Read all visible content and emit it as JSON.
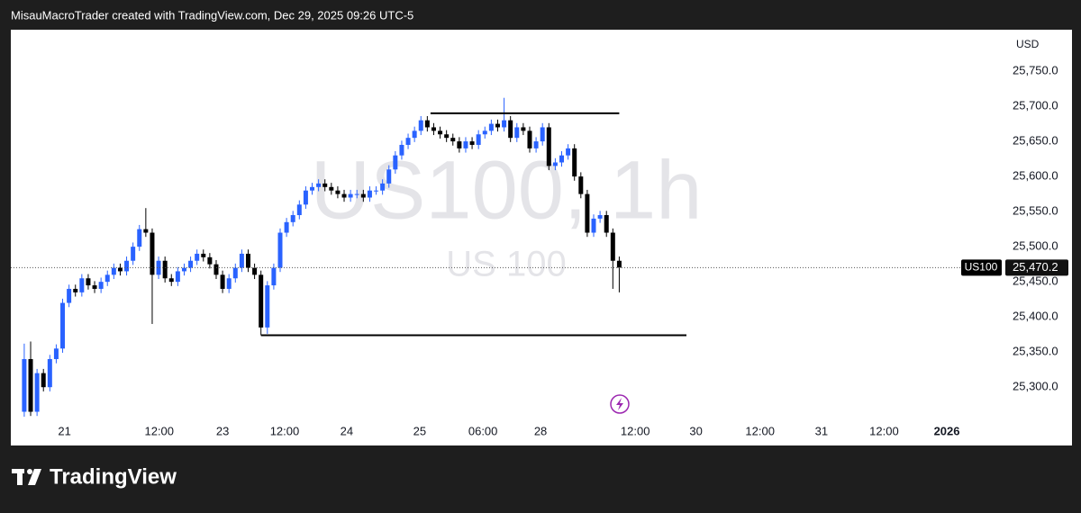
{
  "header": "MisauMacroTrader created with TradingView.com, Dec 29, 2025 09:26 UTC-5",
  "footer": "TradingView",
  "chart_data": {
    "type": "candlestick",
    "watermark": "US100, 1h",
    "watermark_sub": "US 100",
    "currency": "USD",
    "symbol": "US100",
    "open": [
      25265,
      25340,
      25265,
      25320,
      25300,
      25340,
      25355,
      25420,
      25440,
      25435,
      25455,
      25445,
      25440,
      25450,
      25460,
      25470,
      25465,
      25480,
      25500,
      25525,
      25520,
      25460,
      25480,
      25455,
      25450,
      25465,
      25470,
      25480,
      25490,
      25485,
      25475,
      25460,
      25440,
      25455,
      25470,
      25490,
      25470,
      25460,
      25385,
      25445,
      25470,
      25520,
      25535,
      25545,
      25560,
      25580,
      25585,
      25590,
      25585,
      25580,
      25575,
      25570,
      25575,
      25575,
      25570,
      25580,
      25580,
      25590,
      25610,
      25630,
      25645,
      25655,
      25665,
      25680,
      25670,
      25665,
      25660,
      25655,
      25650,
      25640,
      25650,
      25645,
      25660,
      25665,
      25675,
      25670,
      25680,
      25655,
      25670,
      25665,
      25640,
      25650,
      25670,
      25615,
      25620,
      25630,
      25640,
      25600,
      25575,
      25520,
      25540,
      25545,
      25520,
      25480
    ],
    "high": [
      25362,
      25365,
      25326,
      25326,
      25346,
      25361,
      25426,
      25446,
      25446,
      25461,
      25461,
      25451,
      25456,
      25466,
      25476,
      25476,
      25486,
      25506,
      25531,
      25555,
      25526,
      25486,
      25486,
      25461,
      25471,
      25476,
      25486,
      25496,
      25496,
      25491,
      25481,
      25466,
      25461,
      25476,
      25496,
      25496,
      25476,
      25466,
      25451,
      25476,
      25526,
      25541,
      25551,
      25566,
      25586,
      25591,
      25596,
      25596,
      25591,
      25586,
      25581,
      25581,
      25581,
      25581,
      25586,
      25586,
      25596,
      25616,
      25636,
      25651,
      25661,
      25671,
      25686,
      25686,
      25676,
      25671,
      25666,
      25661,
      25656,
      25656,
      25656,
      25666,
      25671,
      25681,
      25681,
      25712,
      25686,
      25676,
      25676,
      25671,
      25656,
      25676,
      25676,
      25626,
      25636,
      25646,
      25646,
      25606,
      25581,
      25546,
      25551,
      25551,
      25526,
      25486
    ],
    "low": [
      25258,
      25259,
      25259,
      25294,
      25294,
      25334,
      25349,
      25414,
      25429,
      25429,
      25439,
      25434,
      25434,
      25444,
      25454,
      25459,
      25459,
      25474,
      25494,
      25514,
      25390,
      25454,
      25449,
      25444,
      25444,
      25459,
      25464,
      25474,
      25479,
      25469,
      25454,
      25434,
      25434,
      25449,
      25464,
      25464,
      25454,
      25374,
      25376,
      25439,
      25464,
      25514,
      25529,
      25539,
      25554,
      25574,
      25579,
      25579,
      25574,
      25569,
      25564,
      25564,
      25569,
      25564,
      25564,
      25574,
      25574,
      25584,
      25604,
      25624,
      25639,
      25649,
      25659,
      25664,
      25659,
      25654,
      25649,
      25644,
      25634,
      25634,
      25639,
      25639,
      25654,
      25659,
      25664,
      25664,
      25649,
      25649,
      25659,
      25634,
      25634,
      25644,
      25609,
      25609,
      25614,
      25624,
      25594,
      25569,
      25514,
      25514,
      25534,
      25514,
      25440,
      25435
    ],
    "close": [
      25340,
      25265,
      25320,
      25300,
      25340,
      25355,
      25420,
      25440,
      25435,
      25455,
      25445,
      25440,
      25450,
      25460,
      25470,
      25465,
      25480,
      25500,
      25525,
      25520,
      25460,
      25480,
      25455,
      25450,
      25465,
      25470,
      25480,
      25490,
      25485,
      25475,
      25460,
      25440,
      25455,
      25470,
      25490,
      25470,
      25460,
      25385,
      25445,
      25470,
      25520,
      25535,
      25545,
      25560,
      25580,
      25585,
      25590,
      25585,
      25580,
      25575,
      25570,
      25575,
      25575,
      25570,
      25580,
      25580,
      25590,
      25610,
      25630,
      25645,
      25655,
      25665,
      25680,
      25670,
      25665,
      25660,
      25655,
      25650,
      25640,
      25650,
      25645,
      25660,
      25665,
      25675,
      25670,
      25680,
      25655,
      25670,
      25665,
      25640,
      25650,
      25670,
      25615,
      25620,
      25630,
      25640,
      25600,
      25575,
      25520,
      25540,
      25545,
      25520,
      25480,
      25470.2
    ],
    "up_color": "#2962ff",
    "down_color": "#000000",
    "ylim": [
      25249,
      25809
    ],
    "yticks": [
      {
        "value": 25300,
        "label": "25,300.0"
      },
      {
        "value": 25350,
        "label": "25,350.0"
      },
      {
        "value": 25400,
        "label": "25,400.0"
      },
      {
        "value": 25450,
        "label": "25,450.0"
      },
      {
        "value": 25500,
        "label": "25,500.0"
      },
      {
        "value": 25550,
        "label": "25,550.0"
      },
      {
        "value": 25600,
        "label": "25,600.0"
      },
      {
        "value": 25650,
        "label": "25,650.0"
      },
      {
        "value": 25700,
        "label": "25,700.0"
      },
      {
        "value": 25750,
        "label": "25,750.0"
      }
    ],
    "xlim": [
      -2.1,
      152.5
    ],
    "xticks": [
      {
        "value": 6.3,
        "label": "21"
      },
      {
        "value": 21.1,
        "label": "12:00"
      },
      {
        "value": 31,
        "label": "23"
      },
      {
        "value": 40.7,
        "label": "12:00"
      },
      {
        "value": 50.4,
        "label": "24"
      },
      {
        "value": 61.8,
        "label": "25"
      },
      {
        "value": 71.7,
        "label": "06:00"
      },
      {
        "value": 80.7,
        "label": "28"
      },
      {
        "value": 95.5,
        "label": "12:00"
      },
      {
        "value": 105,
        "label": "30"
      },
      {
        "value": 115,
        "label": "12:00"
      },
      {
        "value": 124.6,
        "label": "31"
      },
      {
        "value": 134.4,
        "label": "12:00"
      },
      {
        "value": 144.2,
        "label": "2026"
      }
    ],
    "last": {
      "value": 25470.2,
      "label": "25,470.2"
    },
    "lines": [
      {
        "y": 25690,
        "x": [
          63.5,
          93
        ]
      },
      {
        "y": 25374,
        "x": [
          37,
          103.5
        ]
      }
    ]
  }
}
